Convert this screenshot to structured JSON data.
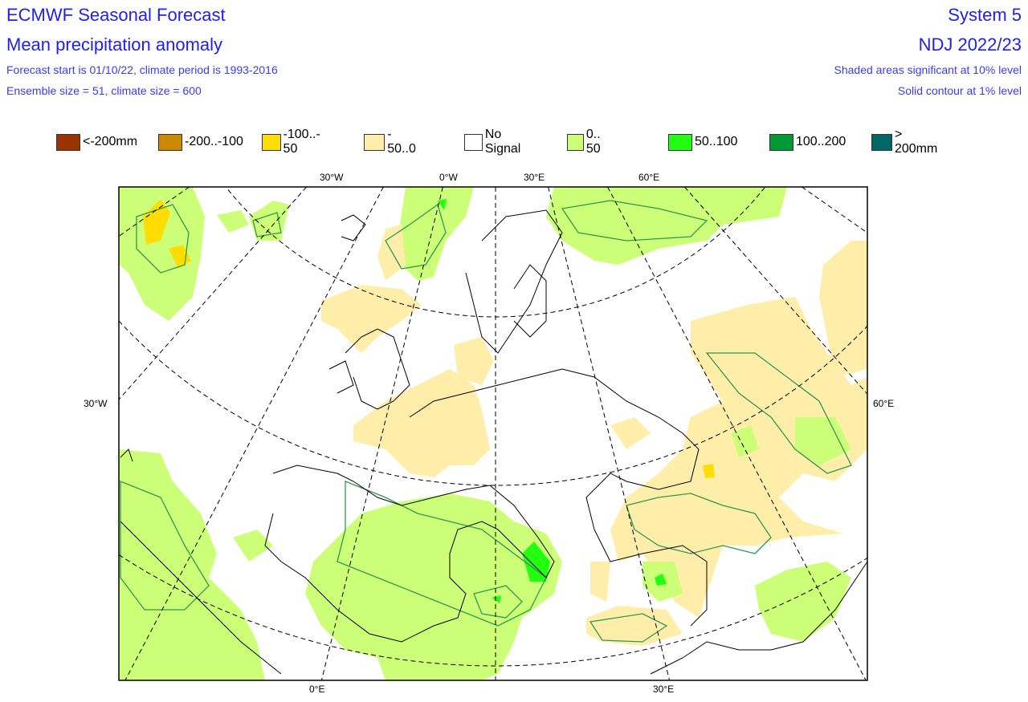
{
  "header": {
    "title": "ECMWF Seasonal Forecast",
    "subtitle": "Mean precipitation anomaly",
    "line1": "Forecast start is 01/10/22, climate period is 1993-2016",
    "line2": "Ensemble size = 51, climate size = 600",
    "system": "System 5",
    "period": "NDJ 2022/23",
    "note1": "Shaded areas significant at 10% level",
    "note2": "Solid contour at 1% level"
  },
  "legend": [
    {
      "label": "<-200mm",
      "color": "#993300"
    },
    {
      "label": "-200..-100",
      "color": "#cc8800"
    },
    {
      "label": "-100..- 50",
      "color": "#ffdd00"
    },
    {
      "label": "- 50..0",
      "color": "#ffeeaa"
    },
    {
      "label": "No Signal",
      "color": "#ffffff"
    },
    {
      "label": "0.. 50",
      "color": "#ccff77"
    },
    {
      "label": "50..100",
      "color": "#22ff11"
    },
    {
      "label": "100..200",
      "color": "#009933"
    },
    {
      "label": "> 200mm",
      "color": "#006666"
    }
  ],
  "graticule_labels": {
    "top": [
      "30°W",
      "0°W",
      "30°E",
      "60°E"
    ],
    "left": "30°W",
    "right": "60°E",
    "bottom": [
      "0°E",
      "30°E"
    ]
  },
  "colors": {
    "contour": "#2e9a4e",
    "coast": "#000000"
  }
}
